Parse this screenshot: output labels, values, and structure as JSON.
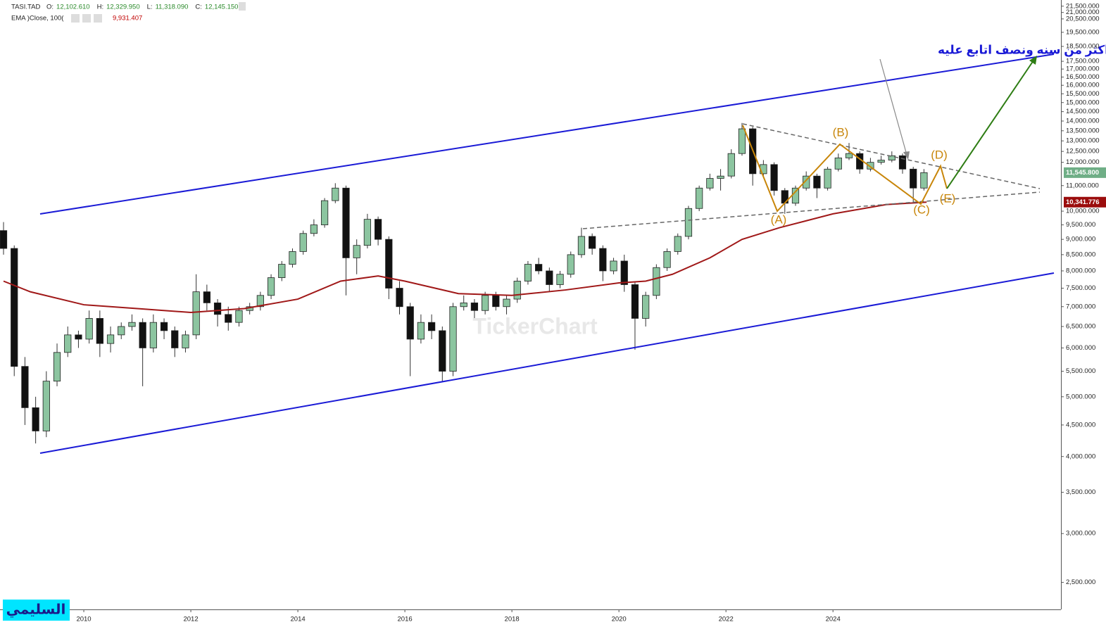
{
  "chart_data": {
    "type": "candlestick",
    "log": true,
    "legend": {
      "symbol": "TASI.TAD",
      "items": [
        {
          "key": "O:",
          "text": "12,102.610"
        },
        {
          "key": "H:",
          "text": "12,329.950"
        },
        {
          "key": "L:",
          "text": "11,318.090"
        },
        {
          "key": "C:",
          "text": "12,145.150"
        }
      ]
    },
    "ema": {
      "name": "EMA )Close, 100(",
      "text": "9,931.407",
      "color": "#a01818",
      "x": [
        2008.5,
        2009.0,
        2010.0,
        2011.0,
        2012.0,
        2013.0,
        2014.0,
        2014.8,
        2015.5,
        2016.0,
        2017.0,
        2018.0,
        2019.0,
        2020.0,
        2020.5,
        2021.0,
        2021.7,
        2022.3,
        2023.0,
        2024.0,
        2025.0,
        2025.75
      ],
      "values": [
        7700,
        7400,
        7050,
        6950,
        6850,
        6950,
        7200,
        7700,
        7850,
        7700,
        7350,
        7300,
        7450,
        7650,
        7700,
        7900,
        8400,
        9000,
        9400,
        9900,
        10250,
        10341.776
      ]
    },
    "last_price": {
      "value": 11545.8,
      "label": "11,545.800"
    },
    "ema_price": {
      "value": 10341.776,
      "label": "10,341.776"
    },
    "up_color": "#8cc5a0",
    "down_color": "#111111",
    "candles": [
      {
        "x": 2008.5,
        "o": 9300,
        "h": 9600,
        "l": 8500,
        "c": 8700
      },
      {
        "x": 2008.7,
        "o": 8700,
        "h": 8800,
        "l": 5400,
        "c": 5600
      },
      {
        "x": 2008.9,
        "o": 5600,
        "h": 5800,
        "l": 4500,
        "c": 4800
      },
      {
        "x": 2009.1,
        "o": 4800,
        "h": 5000,
        "l": 4200,
        "c": 4400
      },
      {
        "x": 2009.3,
        "o": 4400,
        "h": 5500,
        "l": 4300,
        "c": 5300
      },
      {
        "x": 2009.5,
        "o": 5300,
        "h": 6100,
        "l": 5200,
        "c": 5900
      },
      {
        "x": 2009.7,
        "o": 5900,
        "h": 6500,
        "l": 5800,
        "c": 6300
      },
      {
        "x": 2009.9,
        "o": 6300,
        "h": 6400,
        "l": 6000,
        "c": 6200
      },
      {
        "x": 2010.1,
        "o": 6200,
        "h": 6900,
        "l": 6100,
        "c": 6700
      },
      {
        "x": 2010.3,
        "o": 6700,
        "h": 6900,
        "l": 5800,
        "c": 6100
      },
      {
        "x": 2010.5,
        "o": 6100,
        "h": 6500,
        "l": 5900,
        "c": 6300
      },
      {
        "x": 2010.7,
        "o": 6300,
        "h": 6600,
        "l": 6200,
        "c": 6500
      },
      {
        "x": 2010.9,
        "o": 6500,
        "h": 6800,
        "l": 6400,
        "c": 6600
      },
      {
        "x": 2011.1,
        "o": 6600,
        "h": 6700,
        "l": 5200,
        "c": 6000
      },
      {
        "x": 2011.3,
        "o": 6000,
        "h": 6800,
        "l": 5900,
        "c": 6600
      },
      {
        "x": 2011.5,
        "o": 6600,
        "h": 6700,
        "l": 6200,
        "c": 6400
      },
      {
        "x": 2011.7,
        "o": 6400,
        "h": 6500,
        "l": 5800,
        "c": 6000
      },
      {
        "x": 2011.9,
        "o": 6000,
        "h": 6400,
        "l": 5900,
        "c": 6300
      },
      {
        "x": 2012.1,
        "o": 6300,
        "h": 7900,
        "l": 6200,
        "c": 7400
      },
      {
        "x": 2012.3,
        "o": 7400,
        "h": 7600,
        "l": 6900,
        "c": 7100
      },
      {
        "x": 2012.5,
        "o": 7100,
        "h": 7200,
        "l": 6500,
        "c": 6800
      },
      {
        "x": 2012.7,
        "o": 6800,
        "h": 7000,
        "l": 6400,
        "c": 6600
      },
      {
        "x": 2012.9,
        "o": 6600,
        "h": 7000,
        "l": 6500,
        "c": 6900
      },
      {
        "x": 2013.1,
        "o": 6900,
        "h": 7100,
        "l": 6800,
        "c": 7000
      },
      {
        "x": 2013.3,
        "o": 7000,
        "h": 7400,
        "l": 6900,
        "c": 7300
      },
      {
        "x": 2013.5,
        "o": 7300,
        "h": 7900,
        "l": 7200,
        "c": 7800
      },
      {
        "x": 2013.7,
        "o": 7800,
        "h": 8300,
        "l": 7700,
        "c": 8200
      },
      {
        "x": 2013.9,
        "o": 8200,
        "h": 8700,
        "l": 8100,
        "c": 8600
      },
      {
        "x": 2014.1,
        "o": 8600,
        "h": 9300,
        "l": 8500,
        "c": 9200
      },
      {
        "x": 2014.3,
        "o": 9200,
        "h": 9700,
        "l": 9100,
        "c": 9500
      },
      {
        "x": 2014.5,
        "o": 9500,
        "h": 10500,
        "l": 9400,
        "c": 10400
      },
      {
        "x": 2014.7,
        "o": 10400,
        "h": 11100,
        "l": 10300,
        "c": 10900
      },
      {
        "x": 2014.9,
        "o": 10900,
        "h": 11000,
        "l": 7300,
        "c": 8400
      },
      {
        "x": 2015.1,
        "o": 8400,
        "h": 9000,
        "l": 7900,
        "c": 8800
      },
      {
        "x": 2015.3,
        "o": 8800,
        "h": 9900,
        "l": 8700,
        "c": 9700
      },
      {
        "x": 2015.5,
        "o": 9700,
        "h": 9800,
        "l": 8800,
        "c": 9000
      },
      {
        "x": 2015.7,
        "o": 9000,
        "h": 9100,
        "l": 7200,
        "c": 7500
      },
      {
        "x": 2015.9,
        "o": 7500,
        "h": 7700,
        "l": 6800,
        "c": 7000
      },
      {
        "x": 2016.1,
        "o": 7000,
        "h": 7100,
        "l": 5400,
        "c": 6200
      },
      {
        "x": 2016.3,
        "o": 6200,
        "h": 6800,
        "l": 6100,
        "c": 6600
      },
      {
        "x": 2016.5,
        "o": 6600,
        "h": 6800,
        "l": 6200,
        "c": 6400
      },
      {
        "x": 2016.7,
        "o": 6400,
        "h": 6500,
        "l": 5300,
        "c": 5500
      },
      {
        "x": 2016.9,
        "o": 5500,
        "h": 7100,
        "l": 5400,
        "c": 7000
      },
      {
        "x": 2017.1,
        "o": 7000,
        "h": 7300,
        "l": 6900,
        "c": 7100
      },
      {
        "x": 2017.3,
        "o": 7100,
        "h": 7200,
        "l": 6700,
        "c": 6900
      },
      {
        "x": 2017.5,
        "o": 6900,
        "h": 7400,
        "l": 6800,
        "c": 7300
      },
      {
        "x": 2017.7,
        "o": 7300,
        "h": 7400,
        "l": 6900,
        "c": 7000
      },
      {
        "x": 2017.9,
        "o": 7000,
        "h": 7300,
        "l": 6800,
        "c": 7200
      },
      {
        "x": 2018.1,
        "o": 7200,
        "h": 7800,
        "l": 7100,
        "c": 7700
      },
      {
        "x": 2018.3,
        "o": 7700,
        "h": 8300,
        "l": 7600,
        "c": 8200
      },
      {
        "x": 2018.5,
        "o": 8200,
        "h": 8400,
        "l": 7900,
        "c": 8000
      },
      {
        "x": 2018.7,
        "o": 8000,
        "h": 8100,
        "l": 7400,
        "c": 7600
      },
      {
        "x": 2018.9,
        "o": 7600,
        "h": 8000,
        "l": 7500,
        "c": 7900
      },
      {
        "x": 2019.1,
        "o": 7900,
        "h": 8600,
        "l": 7800,
        "c": 8500
      },
      {
        "x": 2019.3,
        "o": 8500,
        "h": 9400,
        "l": 8400,
        "c": 9100
      },
      {
        "x": 2019.5,
        "o": 9100,
        "h": 9200,
        "l": 8500,
        "c": 8700
      },
      {
        "x": 2019.7,
        "o": 8700,
        "h": 8800,
        "l": 7700,
        "c": 8000
      },
      {
        "x": 2019.9,
        "o": 8000,
        "h": 8400,
        "l": 7900,
        "c": 8300
      },
      {
        "x": 2020.1,
        "o": 8300,
        "h": 8500,
        "l": 7400,
        "c": 7600
      },
      {
        "x": 2020.3,
        "o": 7600,
        "h": 7700,
        "l": 5960,
        "c": 6700
      },
      {
        "x": 2020.5,
        "o": 6700,
        "h": 7400,
        "l": 6500,
        "c": 7300
      },
      {
        "x": 2020.7,
        "o": 7300,
        "h": 8200,
        "l": 7200,
        "c": 8100
      },
      {
        "x": 2020.9,
        "o": 8100,
        "h": 8700,
        "l": 8000,
        "c": 8600
      },
      {
        "x": 2021.1,
        "o": 8600,
        "h": 9200,
        "l": 8500,
        "c": 9100
      },
      {
        "x": 2021.3,
        "o": 9100,
        "h": 10200,
        "l": 9000,
        "c": 10100
      },
      {
        "x": 2021.5,
        "o": 10100,
        "h": 11000,
        "l": 10000,
        "c": 10900
      },
      {
        "x": 2021.7,
        "o": 10900,
        "h": 11500,
        "l": 10800,
        "c": 11300
      },
      {
        "x": 2021.9,
        "o": 11300,
        "h": 11700,
        "l": 10800,
        "c": 11400
      },
      {
        "x": 2022.1,
        "o": 11400,
        "h": 12600,
        "l": 11300,
        "c": 12400
      },
      {
        "x": 2022.3,
        "o": 12400,
        "h": 13900,
        "l": 12300,
        "c": 13600
      },
      {
        "x": 2022.5,
        "o": 13600,
        "h": 13700,
        "l": 11000,
        "c": 11500
      },
      {
        "x": 2022.7,
        "o": 11500,
        "h": 12100,
        "l": 11400,
        "c": 11900
      },
      {
        "x": 2022.9,
        "o": 11900,
        "h": 12000,
        "l": 10600,
        "c": 10800
      },
      {
        "x": 2023.1,
        "o": 10800,
        "h": 10900,
        "l": 9900,
        "c": 10300
      },
      {
        "x": 2023.3,
        "o": 10300,
        "h": 11000,
        "l": 10200,
        "c": 10900
      },
      {
        "x": 2023.5,
        "o": 10900,
        "h": 11600,
        "l": 10800,
        "c": 11400
      },
      {
        "x": 2023.7,
        "o": 11400,
        "h": 11500,
        "l": 10500,
        "c": 10900
      },
      {
        "x": 2023.9,
        "o": 10900,
        "h": 11800,
        "l": 10800,
        "c": 11700
      },
      {
        "x": 2024.1,
        "o": 11700,
        "h": 12400,
        "l": 11600,
        "c": 12200
      },
      {
        "x": 2024.3,
        "o": 12200,
        "h": 12900,
        "l": 12100,
        "c": 12400
      },
      {
        "x": 2024.5,
        "o": 12400,
        "h": 12500,
        "l": 11500,
        "c": 11700
      },
      {
        "x": 2024.7,
        "o": 11700,
        "h": 12200,
        "l": 11600,
        "c": 12000
      },
      {
        "x": 2024.9,
        "o": 12000,
        "h": 12300,
        "l": 11900,
        "c": 12100
      },
      {
        "x": 2025.1,
        "o": 12100,
        "h": 12500,
        "l": 12000,
        "c": 12300
      },
      {
        "x": 2025.3,
        "o": 12300,
        "h": 12400,
        "l": 11500,
        "c": 11700
      },
      {
        "x": 2025.5,
        "o": 11700,
        "h": 11800,
        "l": 10300,
        "c": 10900
      },
      {
        "x": 2025.7,
        "o": 10900,
        "h": 11700,
        "l": 10800,
        "c": 11545.8
      }
    ],
    "xlim": [
      2008.434,
      2028.26
    ],
    "xticks": [
      2010,
      2012,
      2014,
      2016,
      2018,
      2020,
      2022,
      2024
    ],
    "ylim": [
      2260,
      22000
    ],
    "yticks": [
      {
        "value": 2500,
        "label": "2,500.000"
      },
      {
        "value": 3000,
        "label": "3,000.000"
      },
      {
        "value": 3500,
        "label": "3,500.000"
      },
      {
        "value": 4000,
        "label": "4,000.000"
      },
      {
        "value": 4500,
        "label": "4,500.000"
      },
      {
        "value": 5000,
        "label": "5,000.000"
      },
      {
        "value": 5500,
        "label": "5,500.000"
      },
      {
        "value": 6000,
        "label": "6,000.000"
      },
      {
        "value": 6500,
        "label": "6,500.000"
      },
      {
        "value": 7000,
        "label": "7,000.000"
      },
      {
        "value": 7500,
        "label": "7,500.000"
      },
      {
        "value": 8000,
        "label": "8,000.000"
      },
      {
        "value": 8500,
        "label": "8,500.000"
      },
      {
        "value": 9000,
        "label": "9,000.000"
      },
      {
        "value": 9500,
        "label": "9,500.000"
      },
      {
        "value": 10000,
        "label": "10,000.000"
      },
      {
        "value": 11000,
        "label": "11,000.000"
      },
      {
        "value": 12000,
        "label": "12,000.000"
      },
      {
        "value": 12500,
        "label": "12,500.000"
      },
      {
        "value": 13000,
        "label": "13,000.000"
      },
      {
        "value": 13500,
        "label": "13,500.000"
      },
      {
        "value": 14000,
        "label": "14,000.000"
      },
      {
        "value": 14500,
        "label": "14,500.000"
      },
      {
        "value": 15000,
        "label": "15,000.000"
      },
      {
        "value": 15500,
        "label": "15,500.000"
      },
      {
        "value": 16000,
        "label": "16,000.000"
      },
      {
        "value": 16500,
        "label": "16,500.000"
      },
      {
        "value": 17000,
        "label": "17,000.000"
      },
      {
        "value": 17500,
        "label": "17,500.000"
      },
      {
        "value": 18500,
        "label": "18,500.000"
      },
      {
        "value": 19500,
        "label": "19,500.000"
      },
      {
        "value": 20500,
        "label": "20,500.000"
      },
      {
        "value": 21000,
        "label": "21,000.000"
      },
      {
        "value": 21500,
        "label": "21,500.000"
      }
    ],
    "annotations": {
      "note": "نعم اذكر هذا الترند ومازلت كل يوم احدثه والمؤشر ماشي عليه وكيف انساه وهو يمثل سقف مثلث موجي  لي اكثر من سنه ونصف اتابع عليه",
      "waves": [
        "(A)",
        "(B)",
        "(C)",
        "(D)",
        "(E)"
      ],
      "watermark": "TickerChart",
      "signature": "السليمي"
    }
  }
}
